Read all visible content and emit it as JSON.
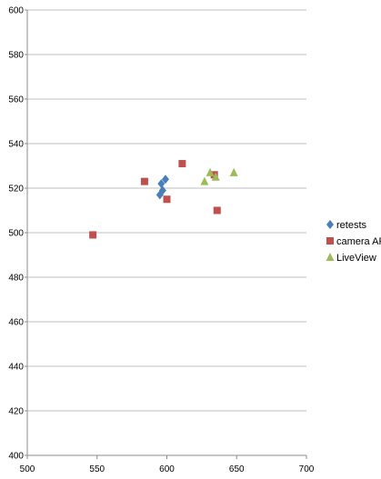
{
  "chart_data": {
    "type": "scatter",
    "title": "",
    "xlabel": "",
    "ylabel": "",
    "xlim": [
      500,
      700
    ],
    "ylim": [
      400,
      600
    ],
    "xticks": [
      "500",
      "550",
      "600",
      "650",
      "700"
    ],
    "yticks": [
      "400",
      "420",
      "440",
      "460",
      "480",
      "500",
      "520",
      "540",
      "560",
      "580",
      "600"
    ],
    "grid": "horizontal",
    "legend_position": "right",
    "series": [
      {
        "name": "retests",
        "marker": "diamond",
        "color": "#4a7ebb",
        "points": [
          [
            595,
            517
          ],
          [
            597,
            519
          ],
          [
            596,
            522
          ],
          [
            599,
            524
          ]
        ]
      },
      {
        "name": "camera AF",
        "marker": "square",
        "color": "#c0504d",
        "points": [
          [
            547,
            499
          ],
          [
            584,
            523
          ],
          [
            600,
            515
          ],
          [
            611,
            531
          ],
          [
            634,
            526
          ],
          [
            636,
            510
          ]
        ]
      },
      {
        "name": "LiveView",
        "marker": "triangle",
        "color": "#9bbb59",
        "points": [
          [
            627,
            523
          ],
          [
            631,
            527
          ],
          [
            635,
            525
          ],
          [
            648,
            527
          ]
        ]
      }
    ]
  }
}
